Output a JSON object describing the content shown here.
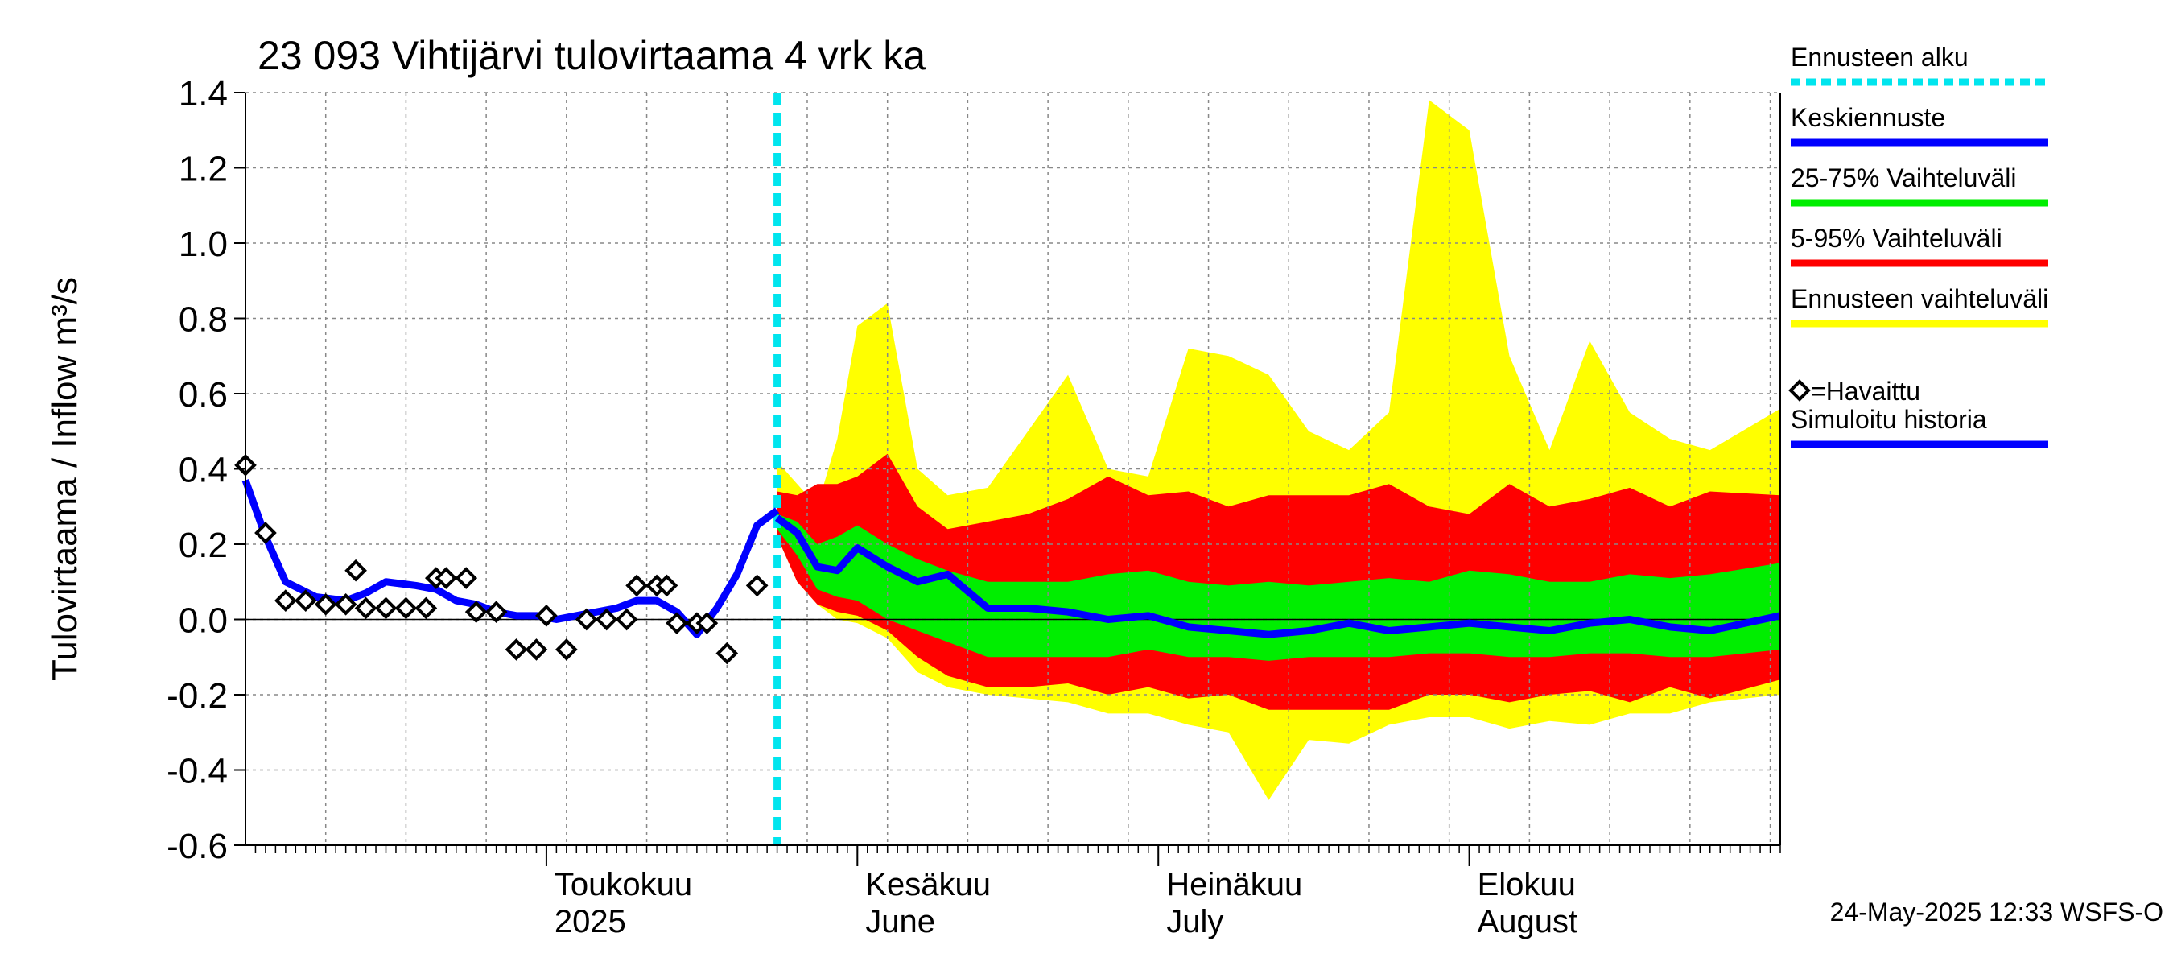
{
  "colors": {
    "forecast_start": "#00e5ee",
    "mean": "#0000ff",
    "band_25_75": "#00ee00",
    "band_5_95": "#ff0000",
    "band_full": "#ffff00",
    "observed": "#000000",
    "history": "#0000ff",
    "grid": "#888888"
  },
  "chart_data": {
    "type": "area",
    "title": "23 093 Vihtijärvi tulovirtaama 4 vrk ka",
    "ylabel": "Tulovirtaama / Inflow    m³/s",
    "ylim": [
      -0.6,
      1.4
    ],
    "y_ticks": [
      -0.6,
      -0.4,
      -0.2,
      0.0,
      0.2,
      0.4,
      0.6,
      0.8,
      1.0,
      1.2,
      1.4
    ],
    "y_tick_labels": [
      "-0.6",
      "-0.4",
      "-0.2",
      "0.0",
      "0.2",
      "0.4",
      "0.6",
      "0.8",
      "1.0",
      "1.2",
      "1.4"
    ],
    "grid": true,
    "x_start": "2025-04-01",
    "x_end": "2025-09-01",
    "forecast_start": "2025-05-24",
    "month_labels": [
      {
        "date": "2025-05-01",
        "line1": "Toukokuu",
        "line2": "2025"
      },
      {
        "date": "2025-06-01",
        "line1": "Kesäkuu",
        "line2": "June"
      },
      {
        "date": "2025-07-01",
        "line1": "Heinäkuu",
        "line2": "July"
      },
      {
        "date": "2025-08-01",
        "line1": "Elokuu",
        "line2": "August"
      }
    ],
    "legend": {
      "placement": "right",
      "items": [
        {
          "label": "Ennusteen alku",
          "style": "dotted",
          "color": "#00e5ee"
        },
        {
          "label": "Keskiennuste",
          "style": "line",
          "color": "#0000ff"
        },
        {
          "label": "25-75% Vaihteluväli",
          "style": "line",
          "color": "#00ee00"
        },
        {
          "label": "5-95% Vaihteluväli",
          "style": "line",
          "color": "#ff0000"
        },
        {
          "label": "Ennusteen vaihteluväli",
          "style": "line",
          "color": "#ffff00"
        },
        {
          "label": "=Havaittu",
          "style": "marker",
          "color": "#000000"
        },
        {
          "label": "Simuloitu historia",
          "style": "line",
          "color": "#0000ff"
        }
      ]
    },
    "footer": "24-May-2025 12:33 WSFS-O",
    "observed": {
      "x": [
        "2025-04-01",
        "2025-04-02",
        "2025-04-03",
        "2025-04-04",
        "2025-04-05",
        "2025-04-06",
        "2025-04-07",
        "2025-04-08",
        "2025-04-09",
        "2025-04-10",
        "2025-04-11",
        "2025-04-12",
        "2025-04-13",
        "2025-04-14",
        "2025-04-15",
        "2025-04-16",
        "2025-04-17",
        "2025-04-18",
        "2025-04-19",
        "2025-04-20",
        "2025-04-21",
        "2025-04-22",
        "2025-04-23",
        "2025-04-24",
        "2025-04-25",
        "2025-04-26",
        "2025-04-27",
        "2025-04-28",
        "2025-04-29",
        "2025-04-30",
        "2025-05-01",
        "2025-05-02",
        "2025-05-03",
        "2025-05-04",
        "2025-05-05",
        "2025-05-06",
        "2025-05-07",
        "2025-05-08",
        "2025-05-09",
        "2025-05-10",
        "2025-05-11",
        "2025-05-12",
        "2025-05-13",
        "2025-05-14",
        "2025-05-15",
        "2025-05-16",
        "2025-05-17",
        "2025-05-18",
        "2025-05-19",
        "2025-05-20",
        "2025-05-21",
        "2025-05-22",
        "2025-05-23"
      ],
      "y": [
        0.41,
        null,
        0.23,
        null,
        0.05,
        null,
        0.05,
        null,
        0.04,
        null,
        0.04,
        0.13,
        0.03,
        null,
        0.03,
        null,
        0.03,
        null,
        0.03,
        0.11,
        0.11,
        null,
        0.11,
        0.02,
        null,
        0.02,
        null,
        -0.08,
        null,
        -0.08,
        0.01,
        null,
        -0.08,
        null,
        0.0,
        null,
        0.0,
        null,
        0.0,
        0.09,
        null,
        0.09,
        0.09,
        -0.01,
        null,
        -0.01,
        -0.01,
        null,
        -0.09,
        null,
        null,
        0.09,
        null
      ]
    },
    "history": {
      "x": [
        "2025-04-01",
        "2025-04-03",
        "2025-04-05",
        "2025-04-08",
        "2025-04-11",
        "2025-04-13",
        "2025-04-15",
        "2025-04-18",
        "2025-04-20",
        "2025-04-22",
        "2025-04-24",
        "2025-04-26",
        "2025-04-28",
        "2025-04-30",
        "2025-05-02",
        "2025-05-04",
        "2025-05-06",
        "2025-05-08",
        "2025-05-10",
        "2025-05-12",
        "2025-05-14",
        "2025-05-16",
        "2025-05-18",
        "2025-05-20",
        "2025-05-22",
        "2025-05-24"
      ],
      "y": [
        0.37,
        0.22,
        0.1,
        0.06,
        0.05,
        0.07,
        0.1,
        0.09,
        0.08,
        0.05,
        0.04,
        0.02,
        0.01,
        0.01,
        0.0,
        0.01,
        0.02,
        0.03,
        0.05,
        0.05,
        0.02,
        -0.04,
        0.03,
        0.12,
        0.25,
        0.29
      ]
    },
    "forecast": {
      "x": [
        "2025-05-24",
        "2025-05-26",
        "2025-05-28",
        "2025-05-30",
        "2025-06-01",
        "2025-06-04",
        "2025-06-07",
        "2025-06-10",
        "2025-06-14",
        "2025-06-18",
        "2025-06-22",
        "2025-06-26",
        "2025-06-30",
        "2025-07-04",
        "2025-07-08",
        "2025-07-12",
        "2025-07-16",
        "2025-07-20",
        "2025-07-24",
        "2025-07-28",
        "2025-08-01",
        "2025-08-05",
        "2025-08-09",
        "2025-08-13",
        "2025-08-17",
        "2025-08-21",
        "2025-08-25",
        "2025-09-01"
      ],
      "mean": [
        0.27,
        0.23,
        0.14,
        0.13,
        0.19,
        0.14,
        0.1,
        0.12,
        0.03,
        0.03,
        0.02,
        0.0,
        0.01,
        -0.02,
        -0.03,
        -0.04,
        -0.03,
        -0.01,
        -0.03,
        -0.02,
        -0.01,
        -0.02,
        -0.03,
        -0.01,
        0.0,
        -0.02,
        -0.03,
        0.01
      ],
      "p25": [
        0.24,
        0.17,
        0.08,
        0.06,
        0.05,
        0.0,
        -0.03,
        -0.06,
        -0.1,
        -0.1,
        -0.1,
        -0.1,
        -0.08,
        -0.1,
        -0.1,
        -0.11,
        -0.1,
        -0.1,
        -0.1,
        -0.09,
        -0.09,
        -0.1,
        -0.1,
        -0.09,
        -0.09,
        -0.1,
        -0.1,
        -0.08
      ],
      "p75": [
        0.28,
        0.26,
        0.2,
        0.22,
        0.25,
        0.2,
        0.16,
        0.13,
        0.1,
        0.1,
        0.1,
        0.12,
        0.13,
        0.1,
        0.09,
        0.1,
        0.09,
        0.1,
        0.11,
        0.1,
        0.13,
        0.12,
        0.1,
        0.1,
        0.12,
        0.11,
        0.12,
        0.15
      ],
      "p05": [
        0.22,
        0.1,
        0.04,
        0.02,
        0.01,
        -0.03,
        -0.1,
        -0.15,
        -0.18,
        -0.18,
        -0.17,
        -0.2,
        -0.18,
        -0.21,
        -0.2,
        -0.24,
        -0.24,
        -0.24,
        -0.24,
        -0.2,
        -0.2,
        -0.22,
        -0.2,
        -0.19,
        -0.22,
        -0.18,
        -0.21,
        -0.16
      ],
      "p95": [
        0.34,
        0.33,
        0.36,
        0.36,
        0.38,
        0.44,
        0.3,
        0.24,
        0.26,
        0.28,
        0.32,
        0.38,
        0.33,
        0.34,
        0.3,
        0.33,
        0.33,
        0.33,
        0.36,
        0.3,
        0.28,
        0.36,
        0.3,
        0.32,
        0.35,
        0.3,
        0.34,
        0.33
      ],
      "min": [
        0.22,
        0.1,
        0.04,
        0.0,
        -0.01,
        -0.05,
        -0.14,
        -0.18,
        -0.2,
        -0.21,
        -0.22,
        -0.25,
        -0.25,
        -0.28,
        -0.3,
        -0.48,
        -0.32,
        -0.33,
        -0.28,
        -0.26,
        -0.26,
        -0.29,
        -0.27,
        -0.28,
        -0.25,
        -0.25,
        -0.22,
        -0.2
      ],
      "max": [
        0.42,
        0.36,
        0.3,
        0.48,
        0.78,
        0.84,
        0.4,
        0.33,
        0.35,
        0.5,
        0.65,
        0.4,
        0.38,
        0.72,
        0.7,
        0.65,
        0.5,
        0.45,
        0.55,
        1.38,
        1.3,
        0.7,
        0.45,
        0.74,
        0.55,
        0.48,
        0.45,
        0.56
      ]
    }
  }
}
